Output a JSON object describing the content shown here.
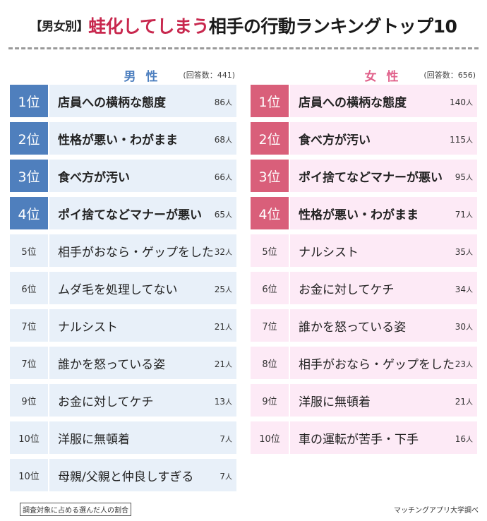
{
  "header": {
    "bracket_label": "【男女別】",
    "title_accent": "蛙化してしまう",
    "title_rest": "相手の行動ランキングトップ10",
    "accent_color": "#c8284e"
  },
  "male": {
    "label": "男 性",
    "respondents": "(回答数：441)",
    "color": "#4f7fbd",
    "rows": [
      {
        "rank": "1位",
        "item": "店員への横柄な態度",
        "votes": "86",
        "unit": "人"
      },
      {
        "rank": "2位",
        "item": "性格が悪い・わがまま",
        "votes": "68",
        "unit": "人"
      },
      {
        "rank": "3位",
        "item": "食べ方が汚い",
        "votes": "66",
        "unit": "人"
      },
      {
        "rank": "4位",
        "item": "ポイ捨てなどマナーが悪い",
        "votes": "65",
        "unit": "人"
      },
      {
        "rank": "5位",
        "item": "相手がおなら・ゲップをした",
        "votes": "32",
        "unit": "人"
      },
      {
        "rank": "6位",
        "item": "ムダ毛を処理してない",
        "votes": "25",
        "unit": "人"
      },
      {
        "rank": "7位",
        "item": "ナルシスト",
        "votes": "21",
        "unit": "人"
      },
      {
        "rank": "7位",
        "item": "誰かを怒っている姿",
        "votes": "21",
        "unit": "人"
      },
      {
        "rank": "9位",
        "item": "お金に対してケチ",
        "votes": "13",
        "unit": "人"
      },
      {
        "rank": "10位",
        "item": "洋服に無頓着",
        "votes": "7",
        "unit": "人"
      },
      {
        "rank": "10位",
        "item": "母親/父親と仲良しすぎる",
        "votes": "7",
        "unit": "人"
      }
    ]
  },
  "female": {
    "label": "女 性",
    "respondents": "(回答数：656)",
    "color": "#d95f7a",
    "rows": [
      {
        "rank": "1位",
        "item": "店員への横柄な態度",
        "votes": "140",
        "unit": "人"
      },
      {
        "rank": "2位",
        "item": "食べ方が汚い",
        "votes": "115",
        "unit": "人"
      },
      {
        "rank": "3位",
        "item": "ポイ捨てなどマナーが悪い",
        "votes": "95",
        "unit": "人"
      },
      {
        "rank": "4位",
        "item": "性格が悪い・わがまま",
        "votes": "71",
        "unit": "人"
      },
      {
        "rank": "5位",
        "item": "ナルシスト",
        "votes": "35",
        "unit": "人"
      },
      {
        "rank": "6位",
        "item": "お金に対してケチ",
        "votes": "34",
        "unit": "人"
      },
      {
        "rank": "7位",
        "item": "誰かを怒っている姿",
        "votes": "30",
        "unit": "人"
      },
      {
        "rank": "8位",
        "item": "相手がおなら・ゲップをした",
        "votes": "23",
        "unit": "人"
      },
      {
        "rank": "9位",
        "item": "洋服に無頓着",
        "votes": "21",
        "unit": "人"
      },
      {
        "rank": "10位",
        "item": "車の運転が苦手・下手",
        "votes": "16",
        "unit": "人"
      }
    ]
  },
  "footer": {
    "note": "調査対象に占める選んだ人の割合",
    "source": "マッチングアプリ大学調べ"
  },
  "chart_data": [
    {
      "type": "table",
      "title": "【男女別】蛙化してしまう相手の行動ランキングトップ10 — 男性 (回答数：441)",
      "categories": [
        "店員への横柄な態度",
        "性格が悪い・わがまま",
        "食べ方が汚い",
        "ポイ捨てなどマナーが悪い",
        "相手がおなら・ゲップをした",
        "ムダ毛を処理してない",
        "ナルシスト",
        "誰かを怒っている姿",
        "お金に対してケチ",
        "洋服に無頓着",
        "母親/父親と仲良しすぎる"
      ],
      "ranks": [
        1,
        2,
        3,
        4,
        5,
        6,
        7,
        7,
        9,
        10,
        10
      ],
      "values": [
        86,
        68,
        66,
        65,
        32,
        25,
        21,
        21,
        13,
        7,
        7
      ],
      "unit": "人"
    },
    {
      "type": "table",
      "title": "【男女別】蛙化してしまう相手の行動ランキングトップ10 — 女性 (回答数：656)",
      "categories": [
        "店員への横柄な態度",
        "食べ方が汚い",
        "ポイ捨てなどマナーが悪い",
        "性格が悪い・わがまま",
        "ナルシスト",
        "お金に対してケチ",
        "誰かを怒っている姿",
        "相手がおなら・ゲップをした",
        "洋服に無頓着",
        "車の運転が苦手・下手"
      ],
      "ranks": [
        1,
        2,
        3,
        4,
        5,
        6,
        7,
        8,
        9,
        10
      ],
      "values": [
        140,
        115,
        95,
        71,
        35,
        34,
        30,
        23,
        21,
        16
      ],
      "unit": "人"
    }
  ]
}
